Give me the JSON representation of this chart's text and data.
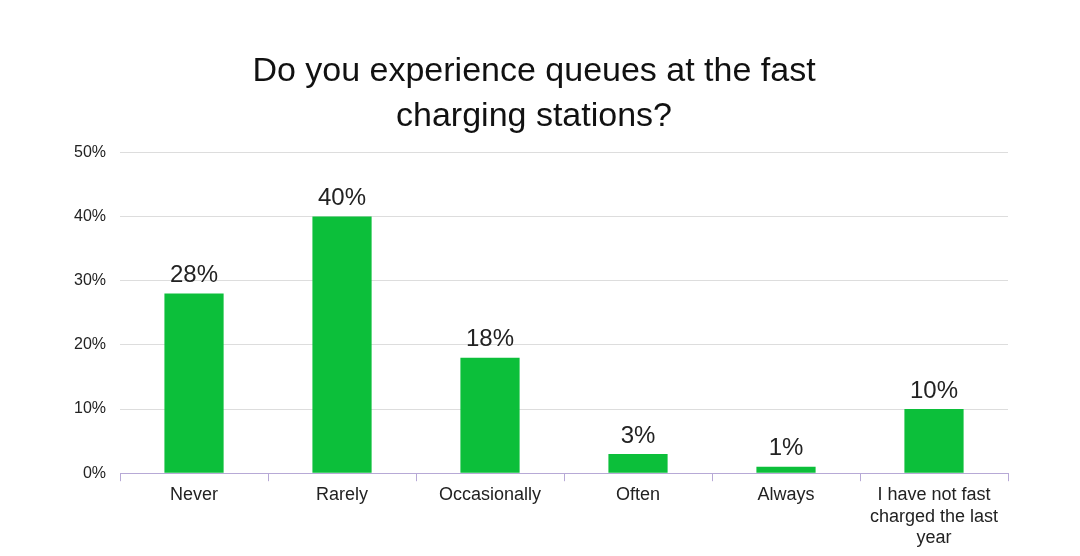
{
  "chart_data": {
    "type": "bar",
    "title": "Do you experience queues at the fast charging stations?",
    "categories": [
      "Never",
      "Rarely",
      "Occasionally",
      "Often",
      "Always",
      "I have not fast charged the last year"
    ],
    "values": [
      28,
      40,
      18,
      3,
      1,
      10
    ],
    "value_labels": [
      "28%",
      "40%",
      "18%",
      "3%",
      "1%",
      "10%"
    ],
    "color": "#0cbf3a",
    "ylim": [
      0,
      50
    ],
    "yticks": [
      {
        "value": 0,
        "label": "0%"
      },
      {
        "value": 10,
        "label": "10%"
      },
      {
        "value": 20,
        "label": "20%"
      },
      {
        "value": 30,
        "label": "30%"
      },
      {
        "value": 40,
        "label": "40%"
      },
      {
        "value": 50,
        "label": "50%"
      }
    ],
    "grid": "y",
    "legend": false
  }
}
